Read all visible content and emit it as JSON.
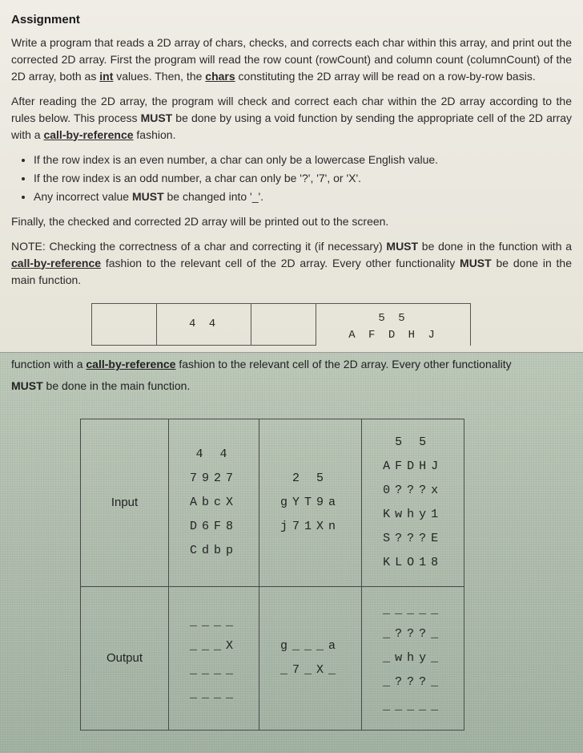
{
  "top": {
    "heading": "Assignment",
    "para1_a": "Write a program that reads a 2D array of chars, checks, and corrects each char within this array, and print out the corrected 2D array. First the program will read the row count (rowCount) and column count (columnCount) of the 2D array, both as ",
    "para1_int": "int",
    "para1_b": " values. Then, the ",
    "para1_chars": "chars",
    "para1_c": " constituting the 2D array will be read on a row-by-row basis.",
    "para2_a": "After reading the 2D array, the program will check and correct each char within the 2D array according to the rules below. This process ",
    "para2_must": "MUST",
    "para2_b": " be done by using a void function by sending the appropriate cell of the 2D array with a ",
    "para2_cbr": "call-by-reference",
    "para2_c": " fashion.",
    "bullet1": "If the row index is an even number, a char can only be a lowercase English value.",
    "bullet2": "If the row index is an odd number, a char can only be '?', '7', or 'X'.",
    "bullet3_a": "Any incorrect value ",
    "bullet3_must": "MUST",
    "bullet3_b": " be changed into '_'.",
    "para3": "Finally, the checked and corrected 2D array will be printed out to the screen.",
    "para4_a": "NOTE: Checking the correctness of a char and correcting it (if necessary) ",
    "para4_must": "MUST",
    "para4_b": " be done in the function with a ",
    "para4_cbr": "call-by-reference",
    "para4_c": " fashion to the relevant cell of the 2D array. Every other functionality ",
    "para4_must2": "MUST",
    "para4_d": " be done in the main function.",
    "partial": {
      "c1a": "4 4",
      "c2a": "",
      "c3a": "5 5",
      "c3b": "A F D H J"
    }
  },
  "scan": {
    "lead_a": "function with a ",
    "lead_cbr": "call-by-reference",
    "lead_b": " fashion to the relevant cell of the 2D array. Every other functionality",
    "must_a": "MUST",
    "must_b": " be done in the main function.",
    "table": {
      "row_input_label": "Input",
      "row_output_label": "Output",
      "input": {
        "col1": "4 4\n7927\nAbcX\nD6F8\nCdbp",
        "col2": "2 5\ngYT9a\nj71Xn",
        "col3": "5 5\nAFDHJ\n0???x\nKwhy1\nS???E\nKLO18"
      },
      "output": {
        "col1": "____\n___X\n____\n____",
        "col2": "g___a\n_7_X_",
        "col3": "_____\n_???_\n_why_\n_???_\n_____"
      }
    }
  }
}
